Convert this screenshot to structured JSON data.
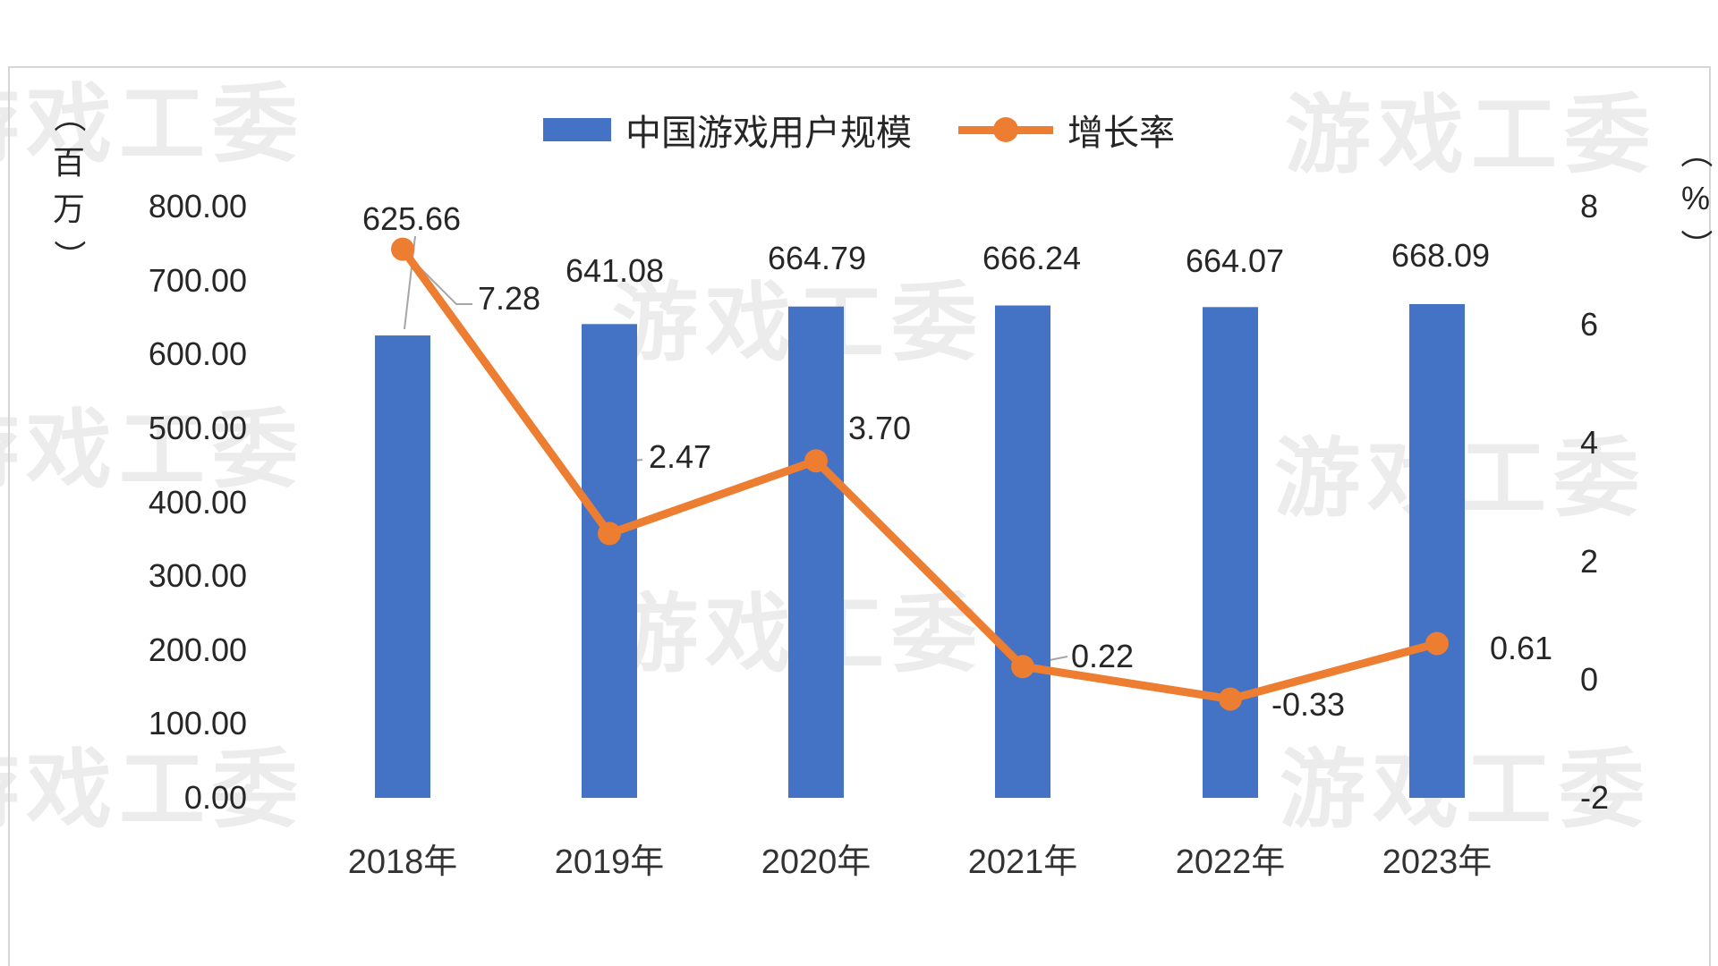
{
  "watermark": {
    "text": "游戏工委"
  },
  "legend": {
    "items": [
      {
        "label": "中国游戏用户规模",
        "color": "#4472C4",
        "type": "bar"
      },
      {
        "label": "增长率",
        "color": "#ED7D31",
        "type": "line"
      }
    ]
  },
  "axes": {
    "left": {
      "title_chars": [
        "（",
        "百",
        "万",
        "）"
      ],
      "ticks": [
        "800.00",
        "700.00",
        "600.00",
        "500.00",
        "400.00",
        "300.00",
        "200.00",
        "100.00",
        "0.00"
      ]
    },
    "right": {
      "title_chars": [
        "（",
        "%",
        "）"
      ],
      "ticks": [
        "8",
        "6",
        "4",
        "2",
        "0",
        "-2"
      ]
    }
  },
  "chart_data": {
    "type": "bar+line",
    "title": "",
    "categories": [
      "2018年",
      "2019年",
      "2020年",
      "2021年",
      "2022年",
      "2023年"
    ],
    "series": [
      {
        "name": "中国游戏用户规模",
        "type": "bar",
        "axis": "left",
        "color": "#4472C4",
        "unit": "百万",
        "values": [
          625.66,
          641.08,
          664.79,
          666.24,
          664.07,
          668.09
        ],
        "labels": [
          "625.66",
          "641.08",
          "664.79",
          "666.24",
          "664.07",
          "668.09"
        ]
      },
      {
        "name": "增长率",
        "type": "line",
        "axis": "right",
        "color": "#ED7D31",
        "unit": "%",
        "values": [
          7.28,
          2.47,
          3.7,
          0.22,
          -0.33,
          0.61
        ],
        "labels": [
          "7.28",
          "2.47",
          "3.70",
          "0.22",
          "-0.33",
          "0.61"
        ]
      }
    ],
    "left_axis": {
      "min": 0,
      "max": 800,
      "ticks": [
        800,
        700,
        600,
        500,
        400,
        300,
        200,
        100,
        0
      ]
    },
    "right_axis": {
      "min": -2,
      "max": 8,
      "ticks": [
        8,
        6,
        4,
        2,
        0,
        -2
      ]
    },
    "grid": "off",
    "legend_position": "top-center",
    "label_color": "#262626",
    "watermark_color": "#ececec"
  }
}
